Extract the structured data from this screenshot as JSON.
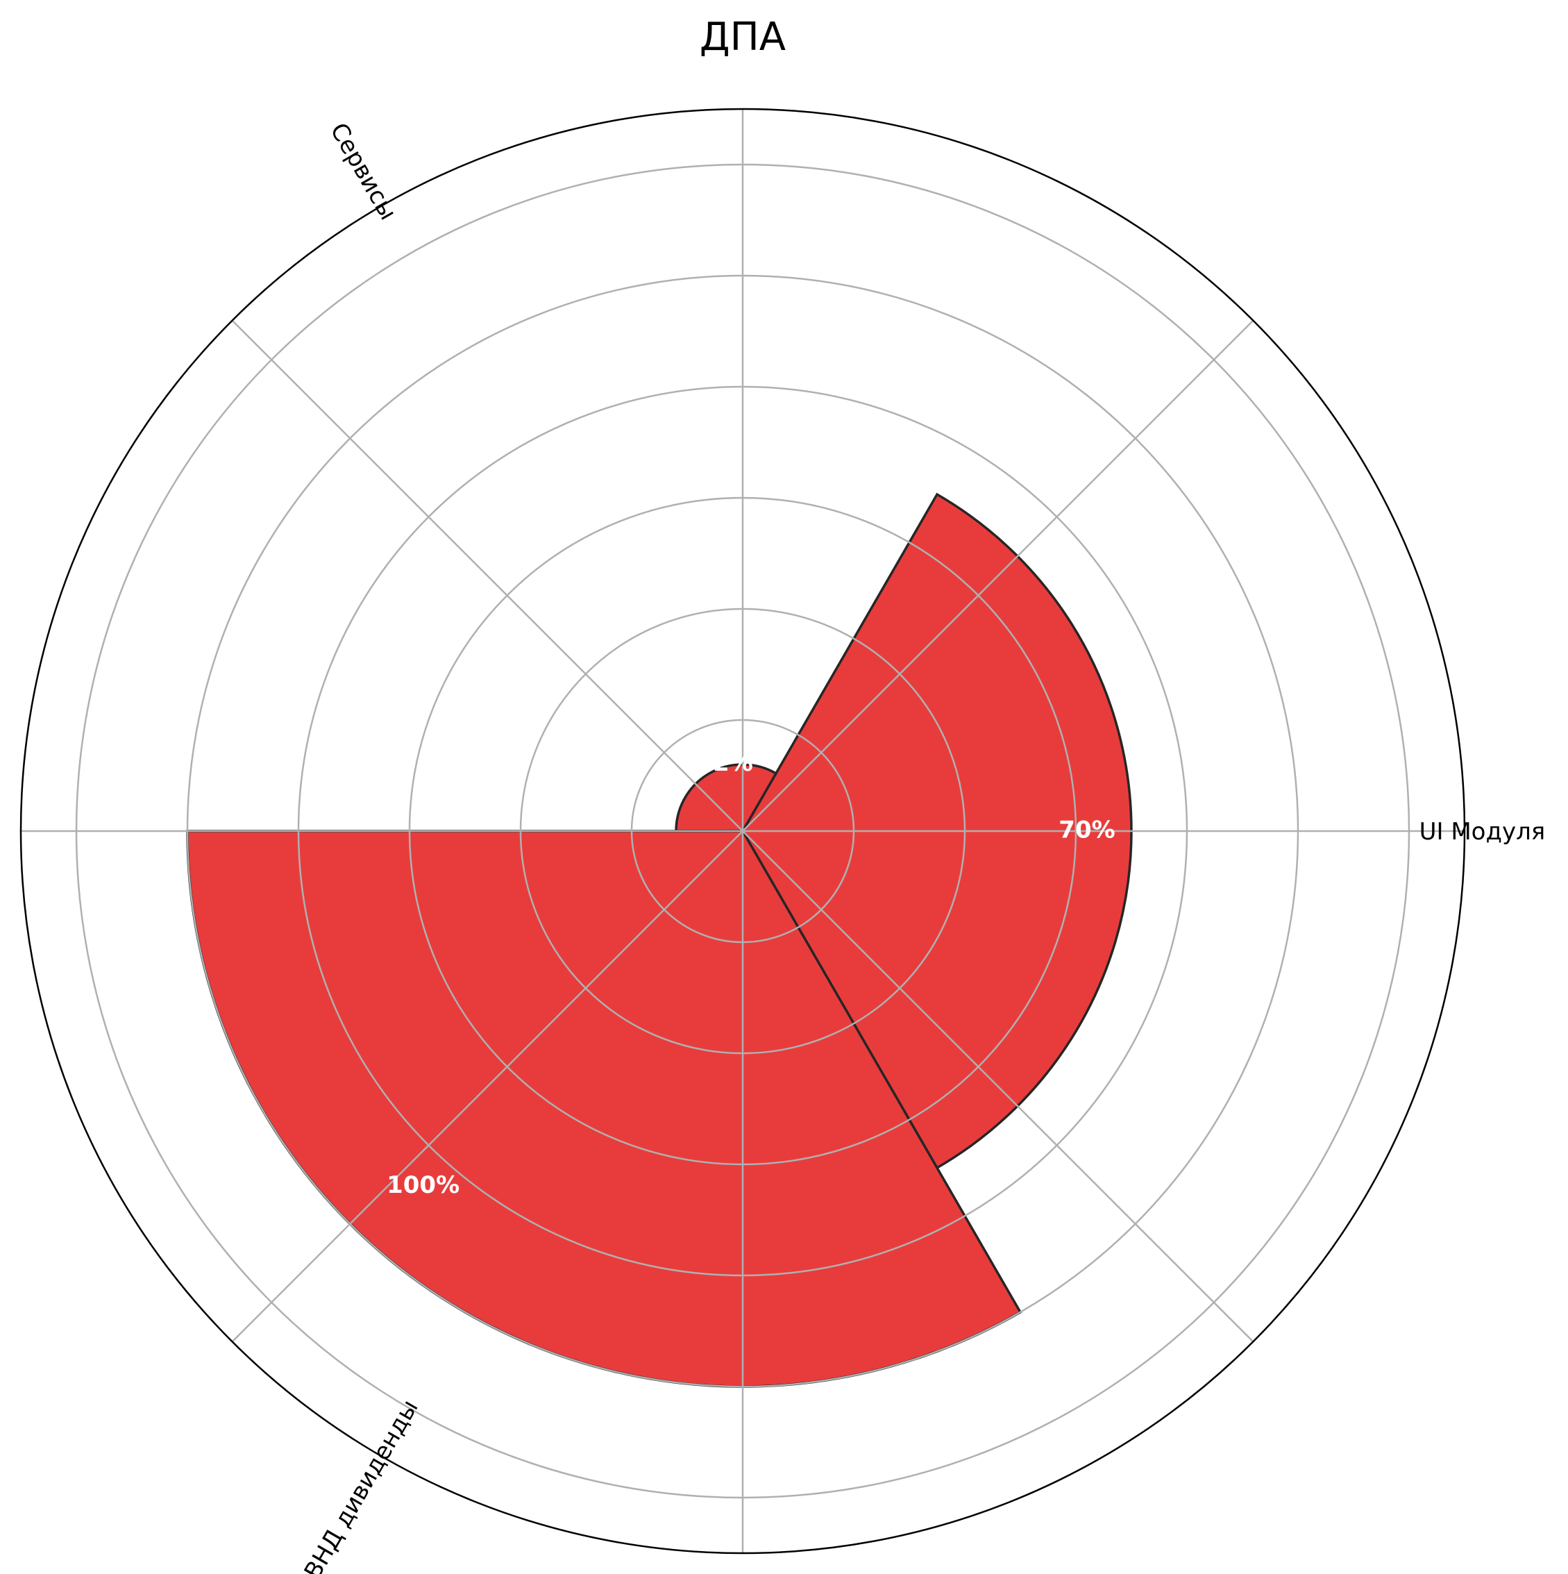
{
  "chart_data": {
    "type": "polar-bar",
    "title": "ДПА",
    "categories": [
      "UI Модуля",
      "Сервисы",
      "ВНД дивиденды"
    ],
    "values": [
      70,
      12,
      100
    ],
    "value_labels": [
      "70%",
      "12%",
      "100%"
    ],
    "bar_color": "#e83c3c",
    "edge_color": "#262626",
    "rlim": [
      0,
      130
    ],
    "grid": true,
    "angle_ticks_deg": [
      0,
      45,
      90,
      135,
      180,
      225,
      270,
      315
    ],
    "bar_centers_deg": [
      0,
      120,
      240
    ],
    "bar_width_deg": 120
  }
}
